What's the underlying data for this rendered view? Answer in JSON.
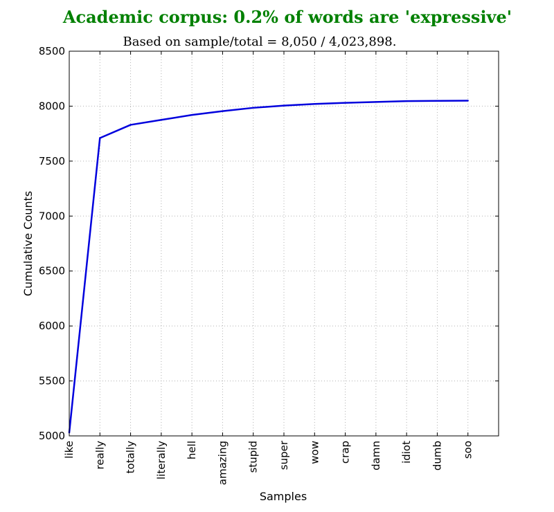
{
  "colors": {
    "title": "#008000",
    "line": "#0000dd",
    "grid": "#b0b0b0",
    "axis": "#000000"
  },
  "chart_data": {
    "type": "line",
    "title": "Academic corpus: 0.2% of words are 'expressive'",
    "subtitle": "Based on sample/total = 8,050 / 4,023,898.",
    "xlabel": "Samples",
    "ylabel": "Cumulative Counts",
    "categories": [
      "like",
      "really",
      "totally",
      "literally",
      "hell",
      "amazing",
      "stupid",
      "super",
      "wow",
      "crap",
      "damn",
      "idiot",
      "dumb",
      "soo"
    ],
    "series": [
      {
        "values": [
          5030,
          7710,
          7830,
          7875,
          7920,
          7955,
          7985,
          8005,
          8020,
          8030,
          8038,
          8046,
          8048,
          8050
        ]
      }
    ],
    "ylim": [
      5000,
      8500
    ],
    "yticks": [
      5000,
      5500,
      6000,
      6500,
      7000,
      7500,
      8000,
      8500
    ],
    "xlim": [
      0,
      14
    ],
    "grid": true
  }
}
